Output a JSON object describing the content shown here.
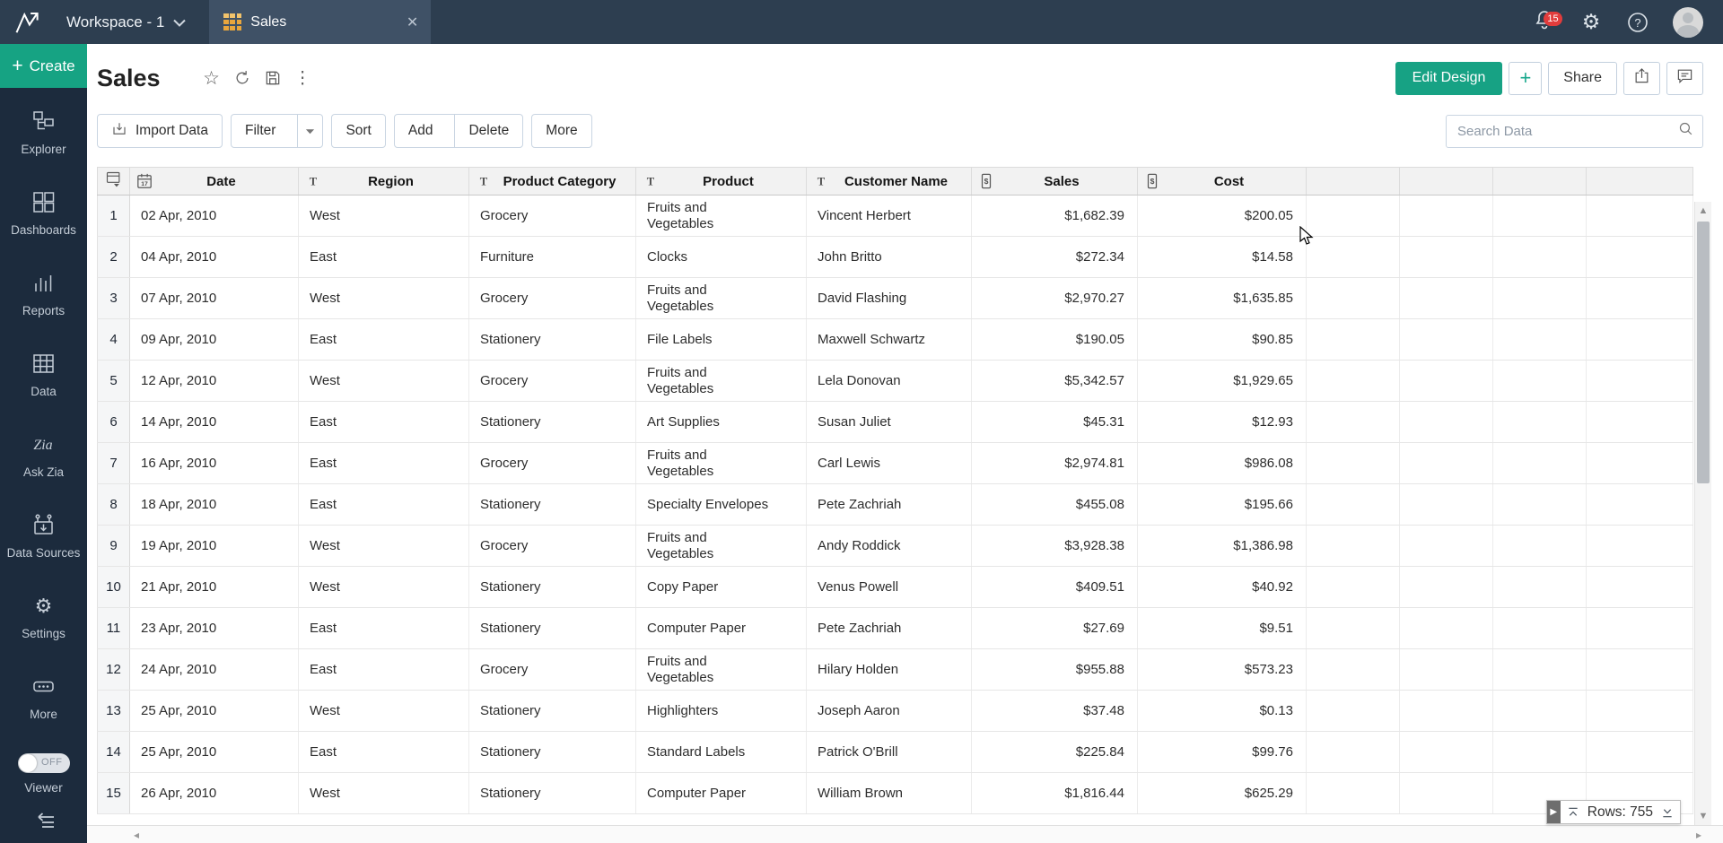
{
  "colors": {
    "topbar_bg": "#2d3e50",
    "sidebar_bg": "#1c2b3d",
    "accent_green": "#17a284",
    "tab_icon_orange": "#e9a63d",
    "badge_red": "#e23c3c"
  },
  "topbar": {
    "workspace_label": "Workspace - 1",
    "tab_label": "Sales",
    "notification_count": "15"
  },
  "sidebar": {
    "create_label": "Create",
    "items": [
      {
        "label": "Explorer",
        "icon": "explorer-icon"
      },
      {
        "label": "Dashboards",
        "icon": "dashboards-icon"
      },
      {
        "label": "Reports",
        "icon": "reports-icon"
      },
      {
        "label": "Data",
        "icon": "data-icon"
      },
      {
        "label": "Ask Zia",
        "icon": "ask-zia-icon"
      },
      {
        "label": "Data Sources",
        "icon": "data-sources-icon"
      },
      {
        "label": "Settings",
        "icon": "settings-icon"
      },
      {
        "label": "More",
        "icon": "more-icon"
      }
    ],
    "viewer": {
      "label": "Viewer",
      "state": "OFF"
    }
  },
  "header": {
    "title": "Sales",
    "edit_design_label": "Edit Design",
    "plus_label": "+",
    "share_label": "Share"
  },
  "toolbar": {
    "import_label": "Import Data",
    "filter_label": "Filter",
    "sort_label": "Sort",
    "add_label": "Add",
    "delete_label": "Delete",
    "more_label": "More",
    "search_placeholder": "Search Data"
  },
  "table": {
    "columns": [
      {
        "label": "Date",
        "icon": "calendar-icon"
      },
      {
        "label": "Region",
        "icon": "text-icon"
      },
      {
        "label": "Product Category",
        "icon": "text-icon"
      },
      {
        "label": "Product",
        "icon": "text-icon"
      },
      {
        "label": "Customer Name",
        "icon": "text-icon"
      },
      {
        "label": "Sales",
        "icon": "currency-icon"
      },
      {
        "label": "Cost",
        "icon": "currency-icon"
      },
      {
        "label": "",
        "icon": ""
      },
      {
        "label": "",
        "icon": ""
      },
      {
        "label": "",
        "icon": ""
      },
      {
        "label": "",
        "icon": ""
      }
    ],
    "rows": [
      {
        "n": "1",
        "date": "02 Apr, 2010",
        "region": "West",
        "category": "Grocery",
        "product": "Fruits and Vegetables",
        "customer": "Vincent Herbert",
        "sales": "$1,682.39",
        "cost": "$200.05"
      },
      {
        "n": "2",
        "date": "04 Apr, 2010",
        "region": "East",
        "category": "Furniture",
        "product": "Clocks",
        "customer": "John Britto",
        "sales": "$272.34",
        "cost": "$14.58"
      },
      {
        "n": "3",
        "date": "07 Apr, 2010",
        "region": "West",
        "category": "Grocery",
        "product": "Fruits and Vegetables",
        "customer": "David Flashing",
        "sales": "$2,970.27",
        "cost": "$1,635.85"
      },
      {
        "n": "4",
        "date": "09 Apr, 2010",
        "region": "East",
        "category": "Stationery",
        "product": "File Labels",
        "customer": "Maxwell Schwartz",
        "sales": "$190.05",
        "cost": "$90.85"
      },
      {
        "n": "5",
        "date": "12 Apr, 2010",
        "region": "West",
        "category": "Grocery",
        "product": "Fruits and Vegetables",
        "customer": "Lela Donovan",
        "sales": "$5,342.57",
        "cost": "$1,929.65"
      },
      {
        "n": "6",
        "date": "14 Apr, 2010",
        "region": "East",
        "category": "Stationery",
        "product": "Art Supplies",
        "customer": "Susan Juliet",
        "sales": "$45.31",
        "cost": "$12.93"
      },
      {
        "n": "7",
        "date": "16 Apr, 2010",
        "region": "East",
        "category": "Grocery",
        "product": "Fruits and Vegetables",
        "customer": "Carl Lewis",
        "sales": "$2,974.81",
        "cost": "$986.08"
      },
      {
        "n": "8",
        "date": "18 Apr, 2010",
        "region": "East",
        "category": "Stationery",
        "product": "Specialty Envelopes",
        "customer": "Pete Zachriah",
        "sales": "$455.08",
        "cost": "$195.66"
      },
      {
        "n": "9",
        "date": "19 Apr, 2010",
        "region": "West",
        "category": "Grocery",
        "product": "Fruits and Vegetables",
        "customer": "Andy Roddick",
        "sales": "$3,928.38",
        "cost": "$1,386.98"
      },
      {
        "n": "10",
        "date": "21 Apr, 2010",
        "region": "West",
        "category": "Stationery",
        "product": "Copy Paper",
        "customer": "Venus Powell",
        "sales": "$409.51",
        "cost": "$40.92"
      },
      {
        "n": "11",
        "date": "23 Apr, 2010",
        "region": "East",
        "category": "Stationery",
        "product": "Computer Paper",
        "customer": "Pete Zachriah",
        "sales": "$27.69",
        "cost": "$9.51"
      },
      {
        "n": "12",
        "date": "24 Apr, 2010",
        "region": "East",
        "category": "Grocery",
        "product": "Fruits and Vegetables",
        "customer": "Hilary Holden",
        "sales": "$955.88",
        "cost": "$573.23"
      },
      {
        "n": "13",
        "date": "25 Apr, 2010",
        "region": "West",
        "category": "Stationery",
        "product": "Highlighters",
        "customer": "Joseph Aaron",
        "sales": "$37.48",
        "cost": "$0.13"
      },
      {
        "n": "14",
        "date": "25 Apr, 2010",
        "region": "East",
        "category": "Stationery",
        "product": "Standard Labels",
        "customer": "Patrick O'Brill",
        "sales": "$225.84",
        "cost": "$99.76"
      },
      {
        "n": "15",
        "date": "26 Apr, 2010",
        "region": "West",
        "category": "Stationery",
        "product": "Computer Paper",
        "customer": "William Brown",
        "sales": "$1,816.44",
        "cost": "$625.29"
      }
    ]
  },
  "statusbar": {
    "rows_label": "Rows: 755"
  }
}
